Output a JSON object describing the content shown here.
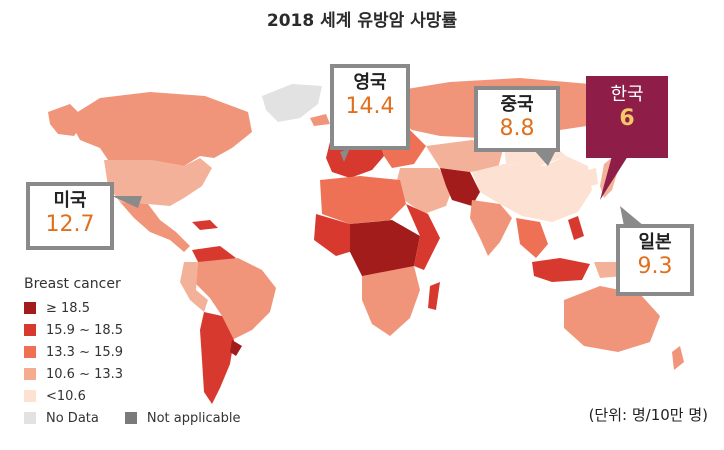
{
  "title": "2018 세계 유방암 사망률",
  "legend": {
    "title": "Breast cancer",
    "items": [
      {
        "label": "≥ 18.5",
        "color": "#a31c1c"
      },
      {
        "label": "15.9 ~ 18.5",
        "color": "#d8392f"
      },
      {
        "label": "13.3 ~ 15.9",
        "color": "#ee7055"
      },
      {
        "label": "10.6 ~ 13.3",
        "color": "#f5ab8e"
      },
      {
        "label": "<10.6",
        "color": "#fde1d2"
      }
    ],
    "no_data": {
      "label": "No Data",
      "color": "#e2e2e2"
    },
    "not_applicable": {
      "label": "Not applicable",
      "color": "#7a7a7a"
    }
  },
  "callouts": {
    "usa": {
      "name": "미국",
      "value": "12.7"
    },
    "uk": {
      "name": "영국",
      "value": "14.4"
    },
    "china": {
      "name": "중국",
      "value": "8.8"
    },
    "korea": {
      "name": "한국",
      "value": "6"
    },
    "japan": {
      "name": "일본",
      "value": "9.3"
    }
  },
  "unit_note": "(단위: 명/10만 명)"
}
